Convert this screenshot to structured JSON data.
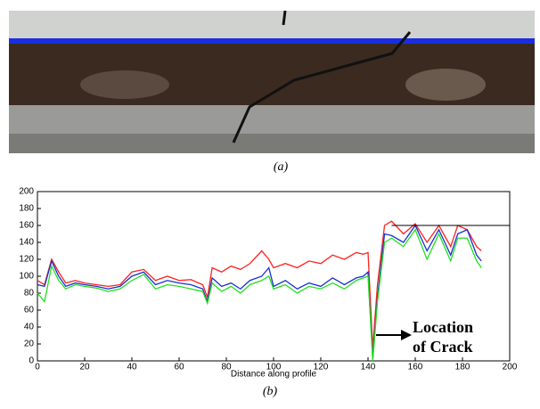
{
  "caption_a": "(a)",
  "caption_b": "(b)",
  "chart_data": {
    "type": "line",
    "xlabel": "Distance along profile",
    "annotation": {
      "line1": "Location",
      "line2": "of Crack"
    },
    "reference_line": {
      "y": 160,
      "x": [
        150,
        200
      ]
    },
    "xlim": [
      0,
      200
    ],
    "ylim": [
      0,
      200
    ],
    "xticks": [
      0,
      20,
      40,
      60,
      80,
      100,
      120,
      140,
      160,
      180,
      200
    ],
    "yticks": [
      0,
      20,
      40,
      60,
      80,
      100,
      120,
      140,
      160,
      180,
      200
    ],
    "x": [
      0,
      3,
      6,
      9,
      12,
      16,
      20,
      25,
      30,
      35,
      40,
      45,
      50,
      55,
      60,
      65,
      70,
      72,
      74,
      78,
      82,
      86,
      90,
      95,
      98,
      100,
      105,
      110,
      115,
      120,
      125,
      130,
      135,
      138,
      140,
      142,
      144,
      147,
      150,
      155,
      160,
      165,
      170,
      175,
      178,
      182,
      186,
      188
    ],
    "series": [
      {
        "color": "#ff2020",
        "values": [
          95,
          90,
          120,
          105,
          92,
          95,
          92,
          90,
          88,
          90,
          105,
          108,
          95,
          100,
          95,
          96,
          90,
          75,
          110,
          105,
          112,
          108,
          115,
          130,
          120,
          110,
          115,
          110,
          118,
          115,
          125,
          120,
          128,
          126,
          128,
          15,
          90,
          160,
          165,
          150,
          162,
          140,
          160,
          135,
          160,
          155,
          135,
          130
        ]
      },
      {
        "color": "#1a2fd0",
        "values": [
          90,
          88,
          118,
          100,
          88,
          92,
          90,
          88,
          85,
          88,
          100,
          105,
          90,
          95,
          92,
          90,
          85,
          70,
          98,
          88,
          92,
          85,
          95,
          100,
          110,
          88,
          95,
          85,
          92,
          88,
          98,
          90,
          98,
          100,
          105,
          2,
          75,
          150,
          148,
          140,
          160,
          130,
          155,
          125,
          150,
          155,
          125,
          118
        ]
      },
      {
        "color": "#20e020",
        "values": [
          80,
          70,
          112,
          95,
          85,
          90,
          88,
          86,
          82,
          85,
          95,
          102,
          85,
          90,
          88,
          85,
          82,
          68,
          92,
          82,
          88,
          80,
          90,
          95,
          100,
          85,
          90,
          80,
          88,
          85,
          92,
          85,
          95,
          98,
          100,
          0,
          70,
          140,
          145,
          135,
          155,
          120,
          150,
          118,
          145,
          145,
          118,
          110
        ]
      }
    ]
  }
}
